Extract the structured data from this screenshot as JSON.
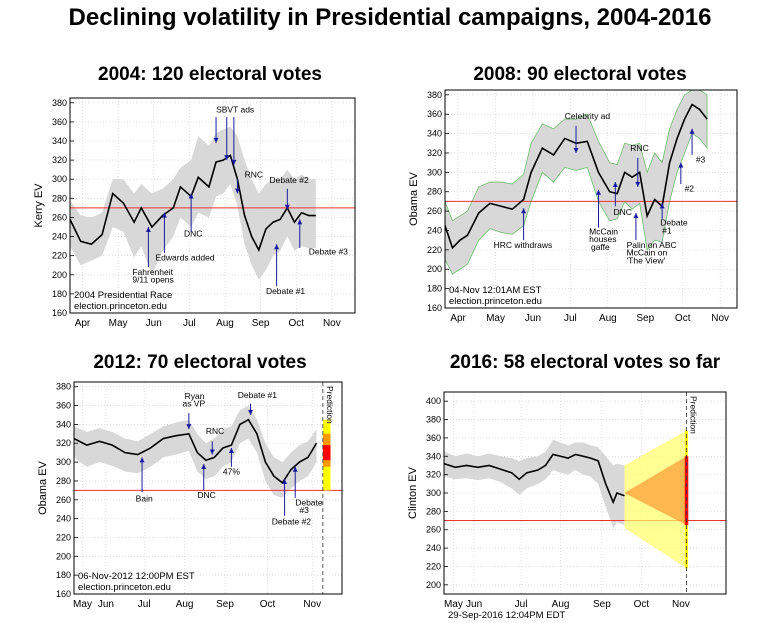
{
  "title": "Declining volatility in Presidential campaigns, 2004-2016",
  "chart_data": [
    {
      "type": "line",
      "title": "2004: 120 electoral votes",
      "ylabel": "Kerry EV",
      "ylim": [
        160,
        385
      ],
      "yticks": [
        160,
        180,
        200,
        220,
        240,
        260,
        280,
        300,
        320,
        340,
        360,
        380
      ],
      "xlim": [
        0,
        8
      ],
      "month_labels": [
        "Apr",
        "May",
        "Jun",
        "Jul",
        "Aug",
        "Sep",
        "Oct",
        "Nov"
      ],
      "threshold": 270,
      "info_lines": [
        "2004 Presidential Race",
        "election.princeton.edu"
      ],
      "series": [
        {
          "x": [
            0,
            0.3,
            0.6,
            0.9,
            1.2,
            1.5,
            1.8,
            2.0,
            2.3,
            2.6,
            2.9,
            3.1,
            3.4,
            3.6,
            3.9,
            4.1,
            4.3,
            4.5,
            4.7,
            4.9,
            5.1,
            5.3,
            5.5,
            5.7,
            5.9,
            6.1,
            6.3,
            6.5,
            6.7,
            6.9
          ],
          "y": [
            258,
            235,
            232,
            242,
            285,
            275,
            255,
            270,
            250,
            262,
            270,
            292,
            282,
            302,
            292,
            318,
            320,
            325,
            300,
            262,
            240,
            226,
            248,
            255,
            258,
            270,
            255,
            265,
            262,
            262
          ]
        }
      ],
      "band_upper": [
        278,
        262,
        260,
        265,
        300,
        300,
        285,
        295,
        285,
        290,
        300,
        312,
        320,
        345,
        335,
        348,
        352,
        355,
        345,
        320,
        300,
        285,
        295,
        300,
        300,
        310,
        300,
        305,
        300,
        300
      ],
      "band_lower": [
        230,
        210,
        215,
        220,
        250,
        245,
        218,
        230,
        200,
        225,
        240,
        260,
        250,
        265,
        260,
        282,
        285,
        295,
        272,
        232,
        210,
        195,
        205,
        220,
        225,
        240,
        225,
        230,
        228,
        228
      ],
      "annotations": [
        {
          "text": "SBVT ads",
          "x": 4.3,
          "y": 378,
          "tx": 4.1,
          "ty": 370,
          "arrows": [
            [
              4.1,
              365,
              4.1,
              338
            ],
            [
              4.4,
              365,
              4.4,
              320
            ],
            [
              4.6,
              365,
              4.6,
              315
            ]
          ]
        },
        {
          "text": "RNC",
          "x": 4.9,
          "y": 305,
          "tx": 4.9,
          "ty": 302,
          "arrows": [
            [
              4.7,
              300,
              4.7,
              285
            ]
          ]
        },
        {
          "text": "DNC",
          "x": 3.2,
          "y": 246,
          "tx": 3.2,
          "ty": 240,
          "arrows": [
            [
              3.4,
              245,
              3.4,
              285
            ]
          ]
        },
        {
          "text": "Edwards added",
          "x": 3.0,
          "y": 215,
          "tx": 2.4,
          "ty": 215,
          "arrows": [
            [
              2.65,
              223,
              2.65,
              265
            ]
          ]
        },
        {
          "text": "Fahrenheit",
          "x": 1.9,
          "y": 200,
          "tx": 1.75,
          "ty": 200,
          "arrows": [
            [
              2.2,
              208,
              2.2,
              250
            ]
          ]
        },
        {
          "text": "9/11 opens",
          "x": 1.9,
          "y": 192,
          "tx": 1.75,
          "ty": 192,
          "arrows": []
        },
        {
          "text": "Debate #2",
          "x": 5.85,
          "y": 296,
          "tx": 5.6,
          "ty": 296,
          "arrows": [
            [
              6.1,
              290,
              6.1,
              268
            ]
          ]
        },
        {
          "text": "Debate #3",
          "x": 7.0,
          "y": 221,
          "tx": 6.7,
          "ty": 221,
          "arrows": [
            [
              6.45,
              228,
              6.45,
              258
            ]
          ]
        },
        {
          "text": "Debate #1",
          "x": 5.8,
          "y": 180,
          "tx": 5.5,
          "ty": 180,
          "arrows": [
            [
              5.8,
              188,
              5.8,
              232
            ]
          ]
        }
      ]
    },
    {
      "type": "line",
      "title": "2008: 90 electoral votes",
      "ylabel": "Obama EV",
      "ylim": [
        160,
        385
      ],
      "yticks": [
        160,
        180,
        200,
        220,
        240,
        260,
        280,
        300,
        320,
        340,
        360,
        380
      ],
      "xlim": [
        0,
        7.8
      ],
      "month_labels": [
        "Apr",
        "May",
        "Jun",
        "Jul",
        "Aug",
        "Sep",
        "Oct",
        "Nov"
      ],
      "threshold": 270,
      "info_lines": [
        "04-Nov 12:01AM EST",
        "election.princeton.edu"
      ],
      "series": [
        {
          "x": [
            0,
            0.2,
            0.4,
            0.6,
            0.9,
            1.2,
            1.5,
            1.8,
            2.1,
            2.3,
            2.6,
            2.9,
            3.2,
            3.5,
            3.8,
            4.1,
            4.4,
            4.6,
            4.8,
            5.0,
            5.2,
            5.4,
            5.6,
            5.8,
            6.0,
            6.2,
            6.4,
            6.6,
            6.8,
            7.0
          ],
          "y": [
            245,
            222,
            230,
            235,
            258,
            268,
            265,
            262,
            272,
            300,
            325,
            318,
            335,
            330,
            332,
            300,
            280,
            278,
            300,
            295,
            300,
            255,
            272,
            265,
            310,
            335,
            355,
            370,
            365,
            355
          ]
        }
      ],
      "band_upper": [
        270,
        250,
        255,
        260,
        285,
        290,
        290,
        288,
        298,
        330,
        350,
        345,
        355,
        355,
        360,
        332,
        310,
        308,
        330,
        328,
        330,
        300,
        320,
        310,
        345,
        365,
        380,
        385,
        385,
        380
      ],
      "band_lower": [
        210,
        195,
        200,
        205,
        230,
        242,
        238,
        236,
        245,
        270,
        300,
        290,
        305,
        302,
        305,
        270,
        250,
        252,
        270,
        262,
        268,
        220,
        230,
        228,
        270,
        300,
        320,
        340,
        335,
        325
      ],
      "annotations": [
        {
          "text": "Celebrity ad",
          "x": 3.5,
          "y": 355,
          "tx": 3.2,
          "ty": 355,
          "arrows": [
            [
              3.5,
              348,
              3.5,
              320
            ]
          ]
        },
        {
          "text": "RNC",
          "x": 5.1,
          "y": 322,
          "tx": 4.95,
          "ty": 322,
          "arrows": [
            [
              5.15,
              315,
              5.15,
              285
            ]
          ]
        },
        {
          "text": "DNC",
          "x": 4.6,
          "y": 256,
          "tx": 4.5,
          "ty": 256,
          "arrows": [
            [
              4.55,
              265,
              4.55,
              290
            ]
          ]
        },
        {
          "text": "HRC withdraws",
          "x": 1.6,
          "y": 222,
          "tx": 1.3,
          "ty": 222,
          "arrows": [
            [
              2.1,
              230,
              2.1,
              263
            ]
          ]
        },
        {
          "text": "McCain",
          "x": 4.05,
          "y": 236,
          "tx": 3.85,
          "ty": 236,
          "arrows": [
            [
              4.1,
              243,
              4.1,
              282
            ]
          ]
        },
        {
          "text": "houses",
          "x": 4.05,
          "y": 228,
          "tx": 3.85,
          "ty": 228,
          "arrows": []
        },
        {
          "text": "gaffe",
          "x": 4.05,
          "y": 220,
          "tx": 3.9,
          "ty": 220,
          "arrows": []
        },
        {
          "text": "Palin on ABC",
          "x": 5.0,
          "y": 222,
          "tx": 4.85,
          "ty": 222,
          "arrows": [
            [
              5.1,
              230,
              5.1,
              258
            ]
          ]
        },
        {
          "text": "McCain on",
          "x": 5.0,
          "y": 214,
          "tx": 4.85,
          "ty": 214,
          "arrows": []
        },
        {
          "text": "'The View'",
          "x": 5.0,
          "y": 206,
          "tx": 4.85,
          "ty": 206,
          "arrows": []
        },
        {
          "text": "Debate",
          "x": 5.85,
          "y": 245,
          "tx": 5.75,
          "ty": 245,
          "arrows": [
            [
              5.8,
              252,
              5.8,
              268
            ]
          ]
        },
        {
          "text": "#1",
          "x": 5.85,
          "y": 237,
          "tx": 5.8,
          "ty": 237,
          "arrows": []
        },
        {
          "text": "#2",
          "x": 6.4,
          "y": 280,
          "tx": 6.4,
          "ty": 280,
          "arrows": [
            [
              6.3,
              288,
              6.3,
              310
            ]
          ]
        },
        {
          "text": "#3",
          "x": 6.7,
          "y": 310,
          "tx": 6.7,
          "ty": 310,
          "arrows": [
            [
              6.6,
              318,
              6.6,
              345
            ]
          ]
        }
      ]
    },
    {
      "type": "line",
      "title": "2012: 70 electoral votes",
      "ylabel": "Obama EV",
      "ylim": [
        160,
        385
      ],
      "yticks": [
        160,
        180,
        200,
        220,
        240,
        260,
        280,
        300,
        320,
        340,
        360,
        380
      ],
      "xlim": [
        0,
        6.3
      ],
      "month_labels": [
        "May",
        "Jun",
        "Jul",
        "Aug",
        "Sep",
        "Oct",
        "Nov"
      ],
      "month_pos": [
        0.2,
        0.75,
        1.65,
        2.6,
        3.55,
        4.55,
        5.6
      ],
      "threshold": 270,
      "info_lines": [
        "06-Nov-2012 12:00PM EST",
        "election.princeton.edu"
      ],
      "prediction_label": "Prediction",
      "series": [
        {
          "x": [
            0,
            0.3,
            0.6,
            0.9,
            1.2,
            1.5,
            1.8,
            2.1,
            2.4,
            2.7,
            2.9,
            3.1,
            3.3,
            3.5,
            3.7,
            3.9,
            4.1,
            4.3,
            4.5,
            4.7,
            4.9,
            5.1,
            5.3,
            5.5,
            5.7
          ],
          "y": [
            325,
            318,
            322,
            318,
            310,
            308,
            315,
            325,
            328,
            330,
            310,
            302,
            305,
            315,
            318,
            340,
            345,
            330,
            300,
            285,
            278,
            292,
            300,
            305,
            320
          ]
        }
      ],
      "band_upper": [
        338,
        332,
        336,
        332,
        325,
        322,
        330,
        338,
        342,
        345,
        330,
        320,
        325,
        335,
        338,
        355,
        360,
        345,
        320,
        305,
        300,
        310,
        318,
        322,
        335
      ],
      "band_lower": [
        305,
        295,
        300,
        296,
        290,
        288,
        295,
        305,
        308,
        312,
        290,
        282,
        285,
        295,
        300,
        320,
        325,
        310,
        280,
        265,
        262,
        272,
        280,
        285,
        300
      ],
      "prediction_band": [
        [
          270,
          345,
          "#ffff00"
        ],
        [
          295,
          330,
          "#ff9900"
        ],
        [
          302,
          318,
          "#ff0000"
        ]
      ],
      "annotations": [
        {
          "text": "Ryan",
          "x": 2.7,
          "y": 367,
          "tx": 2.6,
          "ty": 367,
          "arrows": []
        },
        {
          "text": "as VP",
          "x": 2.7,
          "y": 359,
          "tx": 2.55,
          "ty": 359,
          "arrows": [
            [
              2.7,
              352,
              2.7,
              335
            ]
          ]
        },
        {
          "text": "RNC",
          "x": 3.2,
          "y": 330,
          "tx": 3.1,
          "ty": 330,
          "arrows": [
            [
              3.25,
              322,
              3.25,
              308
            ]
          ]
        },
        {
          "text": "Debate #1",
          "x": 4.1,
          "y": 368,
          "tx": 3.85,
          "ty": 368,
          "arrows": [
            [
              4.15,
              362,
              4.15,
              350
            ]
          ]
        },
        {
          "text": "Bain",
          "x": 1.6,
          "y": 258,
          "tx": 1.45,
          "ty": 258,
          "arrows": [
            [
              1.6,
              268,
              1.6,
              305
            ]
          ]
        },
        {
          "text": "DNC",
          "x": 3.0,
          "y": 262,
          "tx": 2.9,
          "ty": 262,
          "arrows": [
            [
              3.05,
              270,
              3.05,
              298
            ]
          ]
        },
        {
          "text": "47%",
          "x": 3.6,
          "y": 287,
          "tx": 3.5,
          "ty": 287,
          "arrows": [
            [
              3.7,
              295,
              3.7,
              315
            ]
          ]
        },
        {
          "text": "Debate",
          "x": 5.3,
          "y": 254,
          "tx": 5.2,
          "ty": 254,
          "arrows": [
            [
              5.2,
              262,
              5.2,
              295
            ]
          ]
        },
        {
          "text": "#3",
          "x": 5.35,
          "y": 246,
          "tx": 5.3,
          "ty": 246,
          "arrows": []
        },
        {
          "text": "Debate #2",
          "x": 4.9,
          "y": 234,
          "tx": 4.65,
          "ty": 234,
          "arrows": [
            [
              4.95,
              243,
              4.95,
              282
            ]
          ]
        }
      ]
    },
    {
      "type": "line",
      "title": "2016: 58 electoral votes so far",
      "ylabel": "Clinton EV",
      "ylim": [
        190,
        410
      ],
      "yticks": [
        200,
        220,
        240,
        260,
        280,
        300,
        320,
        340,
        360,
        380,
        400
      ],
      "xlim": [
        0,
        7.5
      ],
      "month_labels": [
        "May",
        "Jun",
        "Jul",
        "Aug",
        "Sep",
        "Oct",
        "Nov"
      ],
      "month_pos": [
        0.25,
        0.8,
        2.05,
        3.1,
        4.2,
        5.25,
        6.3
      ],
      "threshold": 270,
      "info_lines": [
        "29-Sep-2016 12:04PM EDT"
      ],
      "prediction_label": "Prediction",
      "series": [
        {
          "x": [
            0,
            0.3,
            0.6,
            0.9,
            1.2,
            1.5,
            1.8,
            2.0,
            2.2,
            2.5,
            2.7,
            2.9,
            3.1,
            3.3,
            3.5,
            3.7,
            3.9,
            4.1,
            4.3,
            4.5,
            4.6,
            4.8
          ],
          "y": [
            332,
            328,
            330,
            328,
            330,
            326,
            322,
            315,
            322,
            325,
            330,
            342,
            340,
            338,
            342,
            340,
            338,
            335,
            310,
            290,
            300,
            297
          ]
        }
      ],
      "band_upper": [
        345,
        340,
        343,
        340,
        343,
        340,
        338,
        335,
        338,
        340,
        345,
        358,
        355,
        352,
        355,
        355,
        352,
        350,
        340,
        330,
        332,
        330
      ],
      "band_lower": [
        318,
        315,
        316,
        314,
        316,
        312,
        305,
        298,
        305,
        310,
        315,
        325,
        322,
        320,
        325,
        320,
        318,
        310,
        285,
        262,
        268,
        265
      ],
      "annotations": []
    }
  ]
}
